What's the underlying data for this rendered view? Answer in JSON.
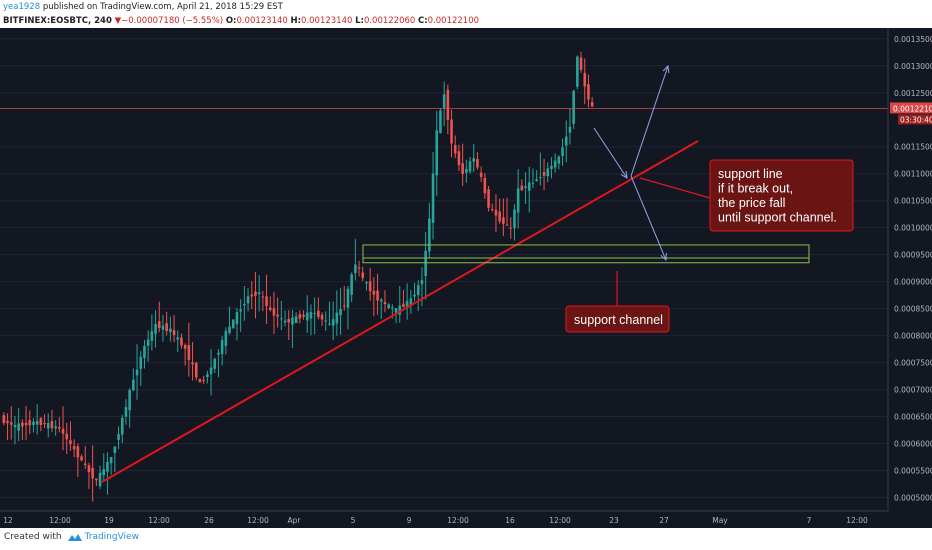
{
  "header": {
    "user": "yea1928",
    "published": "published on TradingView.com, April 21, 2018 15:29 EST",
    "symbol": "BITFINEX:EOSBTC, 240",
    "change_arrow": "▼",
    "change": "−0.00007180 (−5.55%)",
    "o_label": "O:",
    "o_value": "0.00123140",
    "h_label": "H:",
    "h_value": "0.00123140",
    "l_label": "L:",
    "l_value": "0.00122060",
    "c_label": "C:",
    "c_value": "0.00122100"
  },
  "footer": {
    "created_with": "Created with",
    "brand": "TradingView"
  },
  "colors": {
    "background": "#131722",
    "up": "#26a69a",
    "down": "#ef5350",
    "trendline": "#e0161d",
    "box": "#8bc34a",
    "projection": "#8fa6e8",
    "callout_bg": "#6b1414",
    "price_line": "#d84848"
  },
  "chart_data": {
    "type": "candlestick",
    "symbol": "EOSBTC",
    "exchange": "BITFINEX",
    "timeframe": "240",
    "ylim": [
      0.000475,
      0.00137
    ],
    "y_ticks": [
      "0.00050000",
      "0.00055000",
      "0.00060000",
      "0.00065000",
      "0.00070000",
      "0.00075000",
      "0.00080000",
      "0.00085000",
      "0.00090000",
      "0.00095000",
      "0.00100000",
      "0.00105000",
      "0.00110000",
      "0.00115000",
      "0.00125000",
      "0.00130000",
      "0.00135000"
    ],
    "x_ticks": [
      "12",
      "12:00",
      "19",
      "12:00",
      "26",
      "12:00",
      "Apr",
      "5",
      "9",
      "12:00",
      "16",
      "12:00",
      "23",
      "27",
      "May",
      "7",
      "12:00"
    ],
    "last_price_label": "0.00122100",
    "countdown_label": "03:30:40",
    "price_path": [
      [
        0,
        0.000645
      ],
      [
        4,
        0.000632
      ],
      [
        10,
        0.00064
      ],
      [
        16,
        0.000628
      ],
      [
        20,
        0.000588
      ],
      [
        24,
        0.000548
      ],
      [
        26,
        0.00053
      ],
      [
        30,
        0.000575
      ],
      [
        33,
        0.000645
      ],
      [
        36,
        0.00072
      ],
      [
        39,
        0.00078
      ],
      [
        42,
        0.00082
      ],
      [
        46,
        0.00081
      ],
      [
        50,
        0.000775
      ],
      [
        54,
        0.00071
      ],
      [
        57,
        0.00074
      ],
      [
        61,
        0.000805
      ],
      [
        64,
        0.00084
      ],
      [
        67,
        0.000872
      ],
      [
        70,
        0.00088
      ],
      [
        73,
        0.000845
      ],
      [
        77,
        0.000825
      ],
      [
        81,
        0.000835
      ],
      [
        85,
        0.000842
      ],
      [
        89,
        0.00082
      ],
      [
        93,
        0.000858
      ],
      [
        96,
        0.000935
      ],
      [
        98,
        0.000905
      ],
      [
        101,
        0.000875
      ],
      [
        104,
        0.000858
      ],
      [
        107,
        0.000847
      ],
      [
        111,
        0.000866
      ],
      [
        114,
        0.000905
      ],
      [
        116,
        0.001015
      ],
      [
        118,
        0.00118
      ],
      [
        120,
        0.00125
      ],
      [
        122,
        0.001155
      ],
      [
        125,
        0.0011
      ],
      [
        128,
        0.00113
      ],
      [
        130,
        0.00109
      ],
      [
        132,
        0.00104
      ],
      [
        135,
        0.001015
      ],
      [
        138,
        0.000998
      ],
      [
        140,
        0.00107
      ],
      [
        143,
        0.00108
      ],
      [
        147,
        0.0011
      ],
      [
        151,
        0.00113
      ],
      [
        154,
        0.00119
      ],
      [
        156,
        0.00132
      ],
      [
        158,
        0.00126
      ],
      [
        160,
        0.001221
      ]
    ],
    "annotations": [
      {
        "type": "trendline",
        "label": "support line"
      },
      {
        "type": "rectangle",
        "label": "support channel",
        "top": 0.000968,
        "bottom": 0.000935
      },
      {
        "type": "callout",
        "text": [
          "support line",
          "if it break out,",
          "the price fall",
          "until support channel."
        ]
      },
      {
        "type": "callout",
        "text": [
          "support channel"
        ]
      },
      {
        "type": "arrow",
        "direction": "up"
      },
      {
        "type": "arrow",
        "direction": "down"
      }
    ]
  }
}
